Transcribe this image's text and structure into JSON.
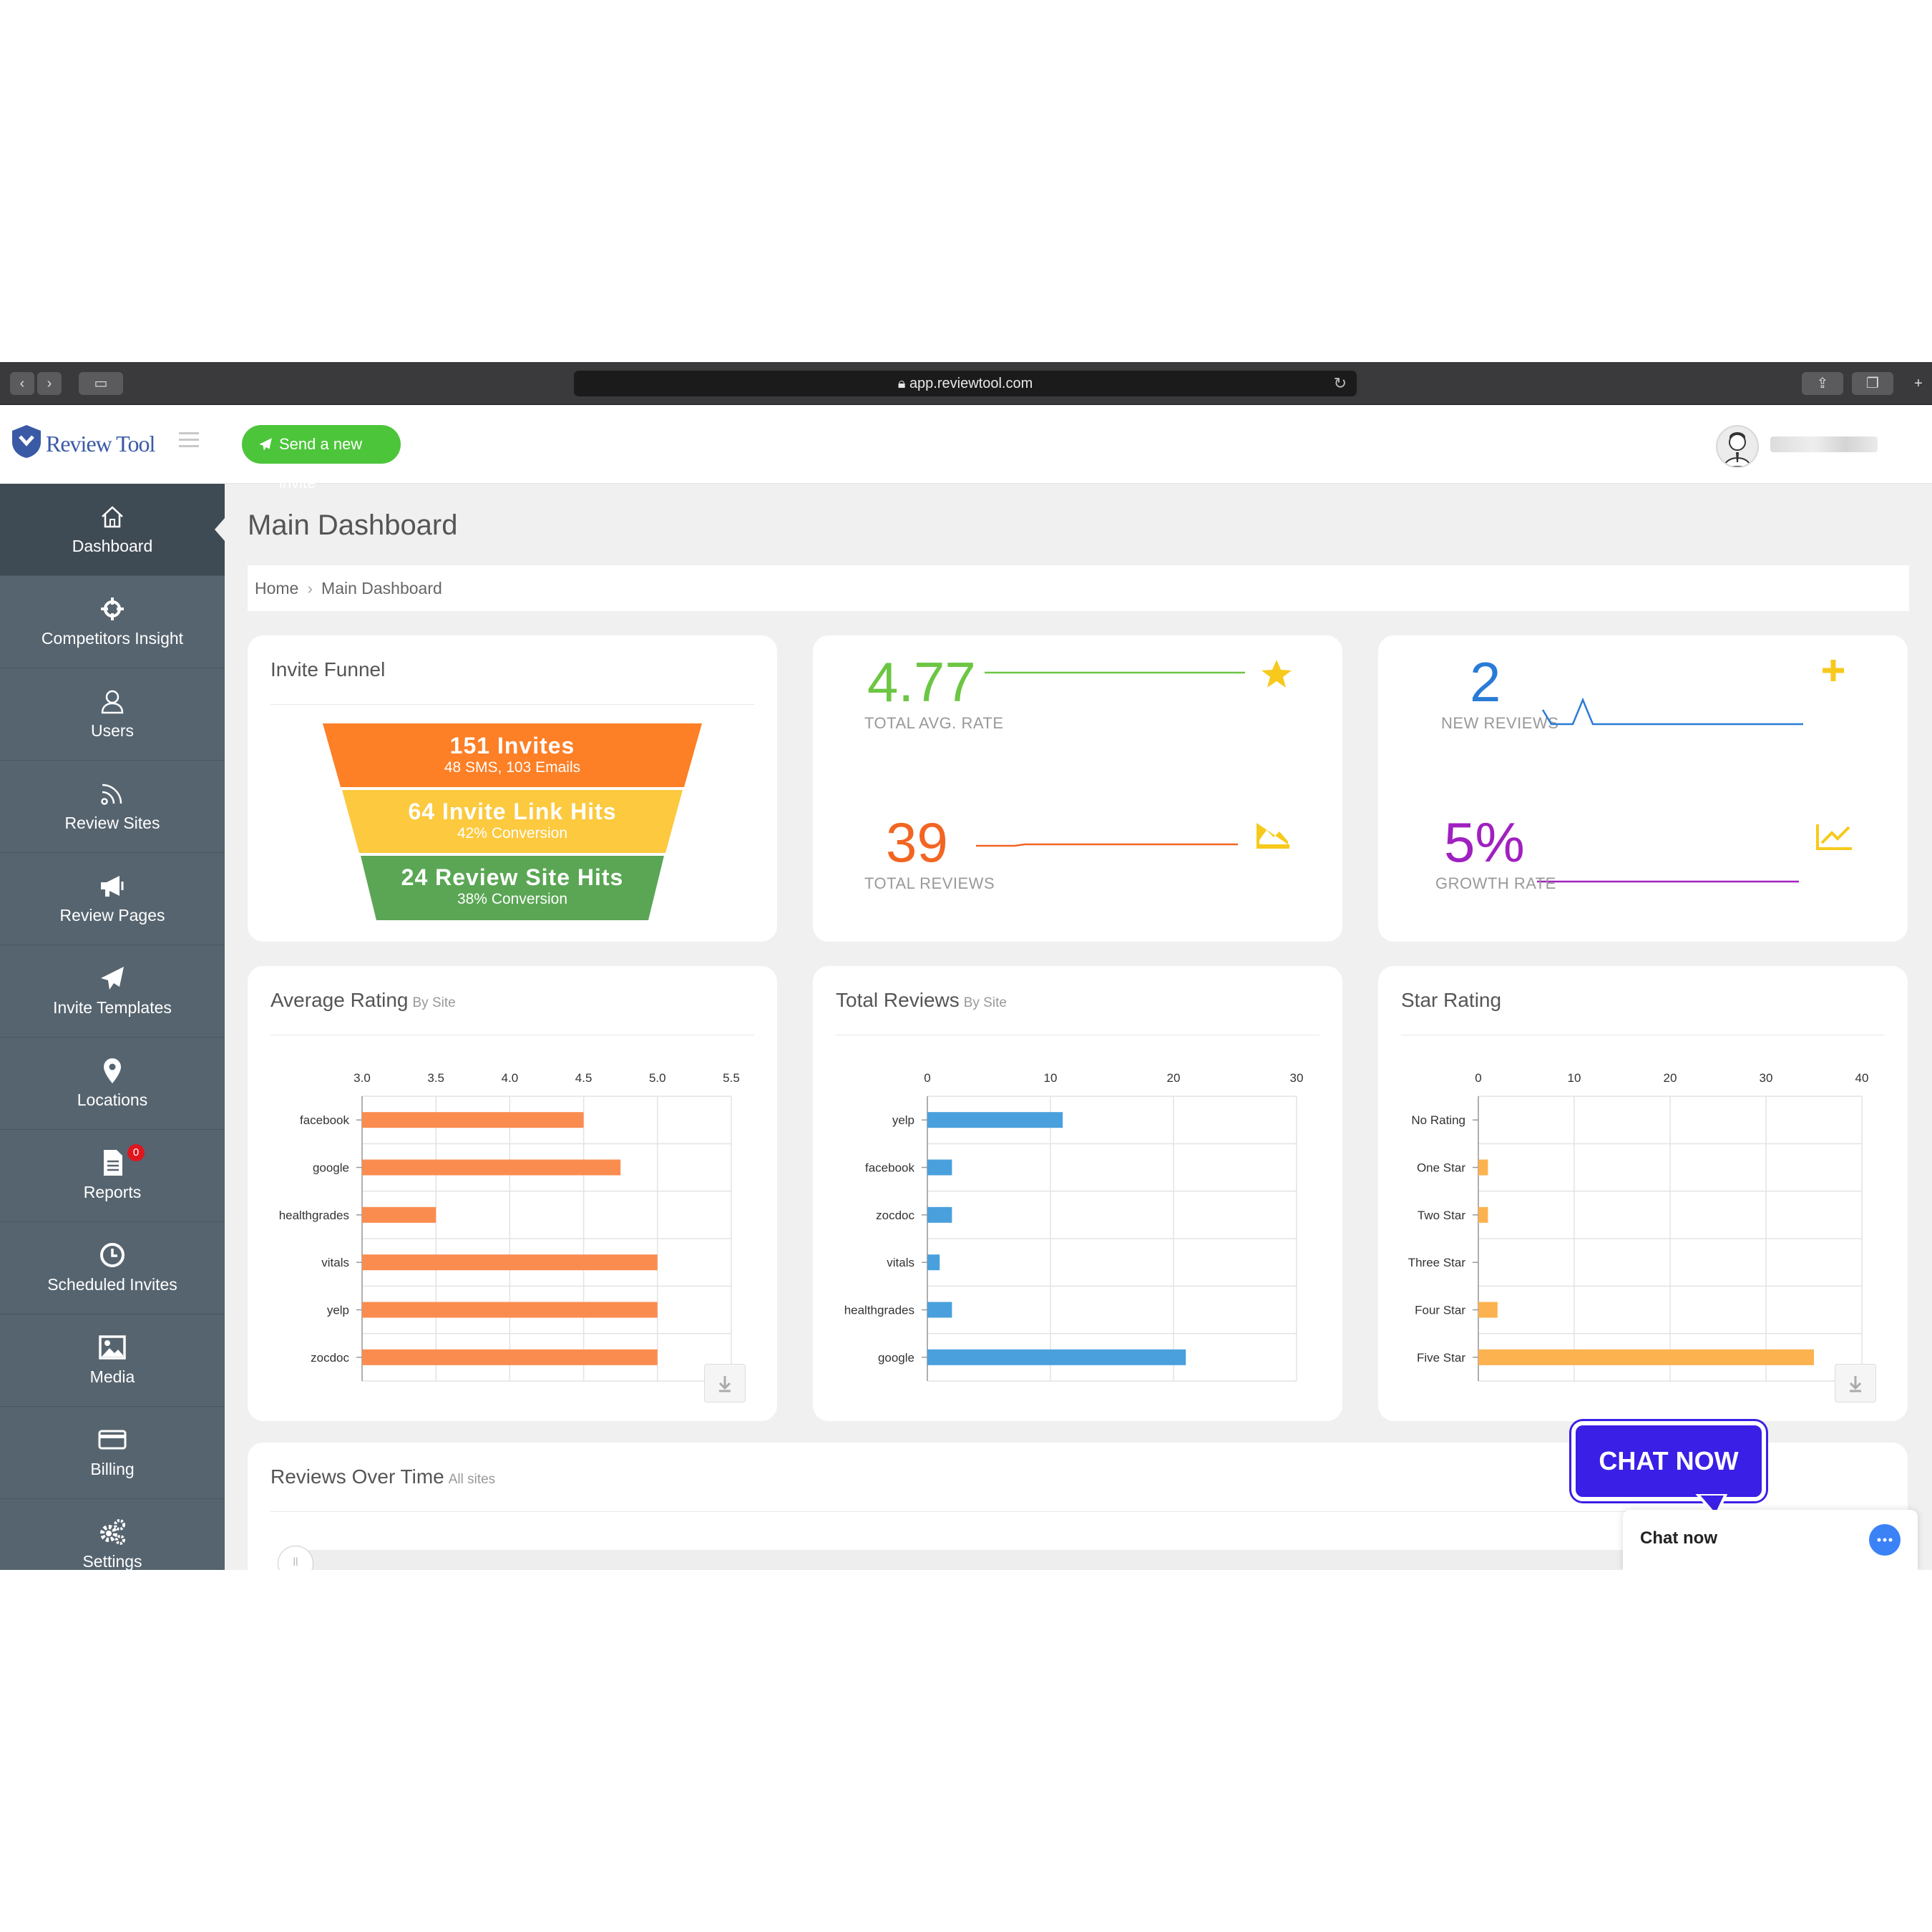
{
  "browser": {
    "url": "app.reviewtool.com"
  },
  "brand": {
    "logo_text": "Review Tool"
  },
  "sidebar": {
    "items": [
      {
        "label": "Dashboard",
        "icon": "home-icon"
      },
      {
        "label": "Competitors Insight",
        "icon": "crosshair-icon"
      },
      {
        "label": "Users",
        "icon": "user-icon"
      },
      {
        "label": "Review Sites",
        "icon": "rss-icon"
      },
      {
        "label": "Review Pages",
        "icon": "megaphone-icon"
      },
      {
        "label": "Invite Templates",
        "icon": "paper-plane-icon"
      },
      {
        "label": "Locations",
        "icon": "map-pin-icon"
      },
      {
        "label": "Reports",
        "icon": "document-icon",
        "badge": "0"
      },
      {
        "label": "Scheduled Invites",
        "icon": "clock-icon"
      },
      {
        "label": "Media",
        "icon": "image-icon"
      },
      {
        "label": "Billing",
        "icon": "credit-card-icon"
      },
      {
        "label": "Settings",
        "icon": "gears-icon"
      }
    ]
  },
  "topbar": {
    "invite_button": "Send a new invite"
  },
  "page": {
    "title": "Main Dashboard"
  },
  "breadcrumb": {
    "home": "Home",
    "current": "Main Dashboard"
  },
  "funnel": {
    "title": "Invite Funnel",
    "stages": [
      {
        "main": "151 Invites",
        "sub": "48 SMS, 103 Emails",
        "color": "#fd7f26"
      },
      {
        "main": "64 Invite Link Hits",
        "sub": "42% Conversion",
        "color": "#fcc93f"
      },
      {
        "main": "24 Review Site Hits",
        "sub": "38% Conversion",
        "color": "#5aa654"
      }
    ]
  },
  "stats": {
    "avg_rate": {
      "value": "4.77",
      "label": "TOTAL AVG. RATE",
      "color": "#6cc644"
    },
    "total_reviews": {
      "value": "39",
      "label": "TOTAL REVIEWS",
      "color": "#f26522"
    },
    "new_reviews": {
      "value": "2",
      "label": "NEW REVIEWS",
      "color": "#2a7bd6"
    },
    "growth_rate": {
      "value": "5%",
      "label": "GROWTH RATE",
      "color": "#a020c0"
    }
  },
  "charts": {
    "avg_rating": {
      "title": "Average Rating",
      "subtitle": "By Site"
    },
    "total_reviews": {
      "title": "Total Reviews",
      "subtitle": "By Site"
    },
    "star_rating": {
      "title": "Star Rating",
      "subtitle": ""
    },
    "reviews_over_time": {
      "title": "Reviews Over Time",
      "subtitle": "All sites"
    }
  },
  "chart_data": [
    {
      "type": "bar",
      "orientation": "horizontal",
      "title": "Average Rating",
      "categories": [
        "facebook",
        "google",
        "healthgrades",
        "vitals",
        "yelp",
        "zocdoc"
      ],
      "values": [
        4.5,
        4.75,
        3.5,
        5.0,
        5.0,
        5.0
      ],
      "xlim": [
        3.0,
        5.5
      ],
      "ticks": [
        "3.0",
        "3.5",
        "4.0",
        "4.5",
        "5.0",
        "5.5"
      ],
      "color": "#fb8c4f",
      "grid": true
    },
    {
      "type": "bar",
      "orientation": "horizontal",
      "title": "Total Reviews",
      "categories": [
        "yelp",
        "facebook",
        "zocdoc",
        "vitals",
        "healthgrades",
        "google"
      ],
      "values": [
        11,
        2,
        2,
        1,
        2,
        21
      ],
      "xlim": [
        0,
        30
      ],
      "ticks": [
        "0",
        "10",
        "20",
        "30"
      ],
      "color": "#4aa0dc",
      "grid": true
    },
    {
      "type": "bar",
      "orientation": "horizontal",
      "title": "Star Rating",
      "categories": [
        "No Rating",
        "One Star",
        "Two Star",
        "Three Star",
        "Four Star",
        "Five Star"
      ],
      "values": [
        0,
        1,
        1,
        0,
        2,
        35
      ],
      "xlim": [
        0,
        40
      ],
      "ticks": [
        "0",
        "10",
        "20",
        "30",
        "40"
      ],
      "color": "#fcb24f",
      "grid": true
    }
  ],
  "chat": {
    "bubble": "CHAT NOW",
    "bar": "Chat now"
  }
}
